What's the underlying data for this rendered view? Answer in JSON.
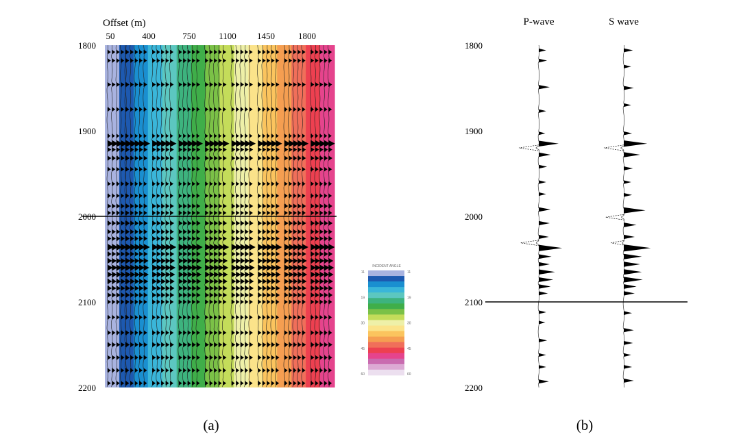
{
  "chart_data": [
    {
      "type": "heatmap",
      "panel_label": "(a)",
      "x_title": "Offset (m)",
      "x_ticks": [
        "50",
        "400",
        "750",
        "1100",
        "1450",
        "1800"
      ],
      "y_ticks": [
        "1800",
        "1900",
        "2000",
        "2100",
        "2200"
      ],
      "x_range": [
        0,
        2000
      ],
      "y_range": [
        1800,
        2200
      ],
      "y_reversed": true,
      "reference_line_depth": 2000,
      "colorbar_title": "INCIDENT ANGLE",
      "colorbar_ticks": [
        "11",
        "19",
        "30",
        "45",
        "60"
      ],
      "colorbar_colors": [
        "#a9b3e0",
        "#1d59b0",
        "#1a8fd0",
        "#3ab6d9",
        "#5cc7c0",
        "#3db37e",
        "#3fae49",
        "#7bc147",
        "#c4dc5a",
        "#eef0a8",
        "#fbe38a",
        "#fbc45e",
        "#f59e51",
        "#f06f5a",
        "#ed4050",
        "#e5448d",
        "#c96bb0",
        "#dca9d4",
        "#ecdfef"
      ],
      "angle_column_colors": [
        "#a9b3e0",
        "#1d59b0",
        "#1a8fd0",
        "#3ab6d9",
        "#5cc7c0",
        "#3db37e",
        "#3fae49",
        "#7bc147",
        "#c4dc5a",
        "#eef0a8",
        "#fbe38a",
        "#fbc45e",
        "#f59e51",
        "#f06f5a",
        "#ed4050",
        "#e5448d"
      ],
      "trace_offsets": [
        100,
        260,
        490,
        720,
        950,
        1180,
        1410,
        1640,
        1870
      ],
      "event_depths": [
        1808,
        1818,
        1846,
        1875,
        1906,
        1915,
        1922,
        1932,
        1945,
        1962,
        1976,
        1988,
        1996,
        2008,
        2018,
        2026,
        2036,
        2044,
        2052,
        2060,
        2068,
        2076,
        2084,
        2092,
        2100,
        2118,
        2136,
        2150,
        2165,
        2180,
        2195
      ],
      "event_amplitudes": [
        0.35,
        0.35,
        0.4,
        0.35,
        0.3,
        1.0,
        0.45,
        0.45,
        0.35,
        0.35,
        0.35,
        0.45,
        0.4,
        0.5,
        0.45,
        0.45,
        0.95,
        0.5,
        0.65,
        0.8,
        0.7,
        0.6,
        0.55,
        0.5,
        0.4,
        0.35,
        0.4,
        0.45,
        0.4,
        0.35,
        0.35
      ]
    },
    {
      "type": "line",
      "panel_label": "(b)",
      "series": [
        {
          "name": "P-wave",
          "depth": [
            1806,
            1818,
            1849,
            1877,
            1903,
            1915,
            1920,
            1928,
            1942,
            1960,
            1974,
            1992,
            2008,
            2024,
            2031,
            2037,
            2047,
            2056,
            2065,
            2074,
            2082,
            2090,
            2112,
            2124,
            2145,
            2162,
            2176,
            2193
          ],
          "amplitude": [
            0.3,
            0.35,
            0.5,
            0.3,
            0.25,
            1.0,
            -1.0,
            0.55,
            0.35,
            0.3,
            0.3,
            0.55,
            0.5,
            0.45,
            -0.9,
            1.2,
            0.6,
            0.5,
            0.8,
            0.7,
            0.55,
            0.4,
            0.3,
            0.25,
            0.35,
            0.3,
            0.3,
            0.45
          ]
        },
        {
          "name": "S wave",
          "depth": [
            1806,
            1825,
            1850,
            1870,
            1903,
            1915,
            1920,
            1928,
            1944,
            1960,
            1975,
            1993,
            2001,
            2010,
            2024,
            2031,
            2037,
            2047,
            2056,
            2065,
            2074,
            2082,
            2090,
            2113,
            2133,
            2148,
            2162,
            2176,
            2192
          ],
          "amplitude": [
            0.4,
            0.3,
            0.45,
            0.3,
            0.35,
            1.2,
            -1.0,
            0.8,
            0.4,
            0.3,
            0.35,
            1.1,
            -0.9,
            0.6,
            0.5,
            -0.6,
            1.4,
            0.9,
            0.8,
            0.9,
            0.95,
            0.6,
            0.5,
            0.35,
            0.45,
            0.4,
            0.3,
            0.35,
            0.45
          ]
        }
      ],
      "y_ticks": [
        "1800",
        "1900",
        "2000",
        "2100",
        "2200"
      ],
      "y_range": [
        1800,
        2200
      ],
      "y_reversed": true,
      "reference_line_depth": 2100
    }
  ]
}
